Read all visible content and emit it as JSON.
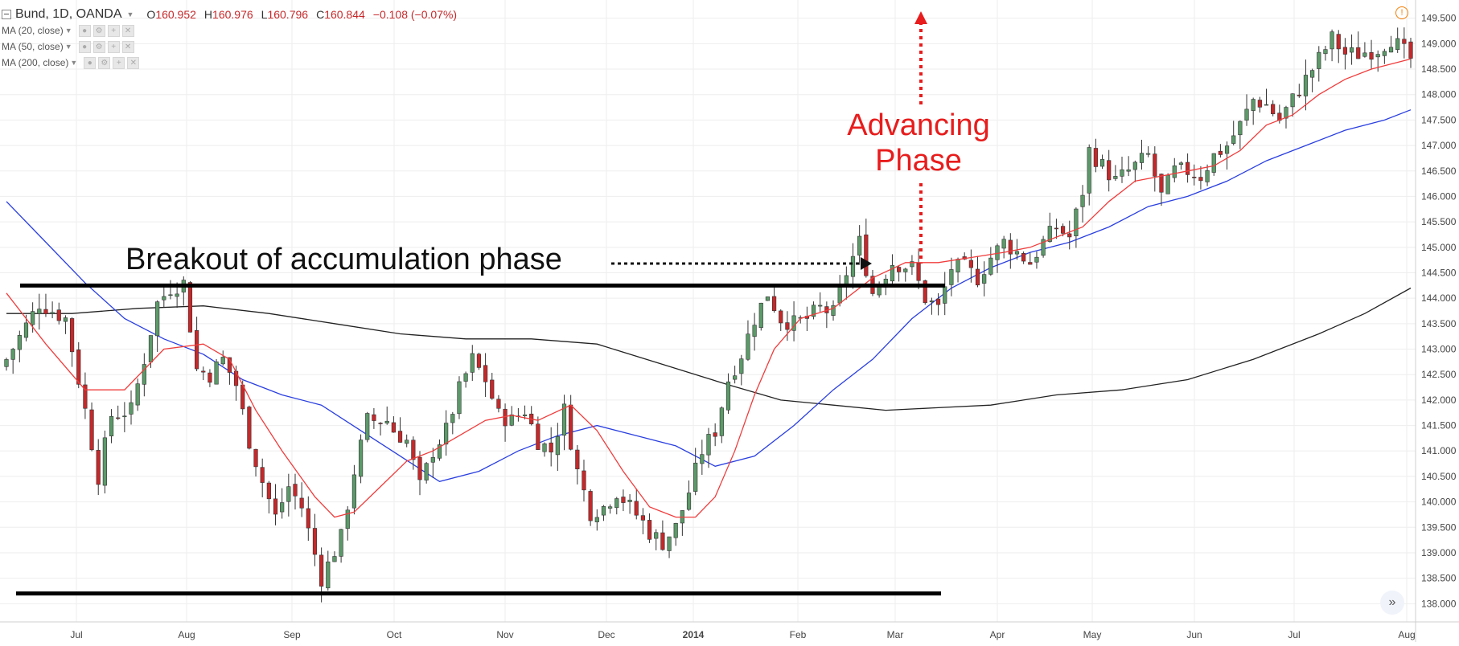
{
  "legend": {
    "symbol": "Bund, 1D, OANDA",
    "o_label": "O",
    "o_value": "160.952",
    "h_label": "H",
    "h_value": "160.976",
    "l_label": "L",
    "l_value": "160.796",
    "c_label": "C",
    "c_value": "160.844",
    "change": "−0.108 (−0.07%)",
    "indicators": [
      "MA (20, close)",
      "MA (50, close)",
      "MA (200, close)"
    ]
  },
  "icons": {
    "collapse": "collapse-icon",
    "warning": "warning-icon",
    "scroll": "scroll-right-icon",
    "settings": "gear-icon",
    "add": "plus-icon",
    "remove": "close-icon"
  },
  "annotations": {
    "breakout": "Breakout of accumulation phase",
    "advancing_line1": "Advancing",
    "advancing_line2": "Phase"
  },
  "colors": {
    "up_candle": "#5b9a68",
    "down_candle": "#c6282a",
    "ma20": "#f03c3c",
    "ma50": "#2a3fe0",
    "ma200": "#222222",
    "annotation_red": "#e81c1c",
    "grid": "#eeeeee"
  },
  "chart_data": {
    "type": "candlestick",
    "title": "Bund, 1D, OANDA",
    "y_range": [
      137.8,
      149.7
    ],
    "y_ticks": [
      "149.500",
      "149.000",
      "148.500",
      "148.000",
      "147.500",
      "147.000",
      "146.500",
      "146.000",
      "145.500",
      "145.000",
      "144.500",
      "144.000",
      "143.500",
      "143.000",
      "142.500",
      "142.000",
      "141.500",
      "141.000",
      "140.500",
      "140.000",
      "139.500",
      "139.000",
      "138.500",
      "138.000"
    ],
    "x_labels": [
      "Jul",
      "Aug",
      "Sep",
      "Oct",
      "Nov",
      "Dec",
      "2014",
      "Feb",
      "Mar",
      "Apr",
      "May",
      "Jun",
      "Jul",
      "Aug"
    ],
    "resistance_level": 144.25,
    "support_level": 138.2,
    "close_path": [
      [
        0,
        142.8
      ],
      [
        5,
        143.9
      ],
      [
        9,
        143.6
      ],
      [
        12,
        141.8
      ],
      [
        14,
        140.5
      ],
      [
        16,
        141.7
      ],
      [
        19,
        141.8
      ],
      [
        21,
        142.8
      ],
      [
        23,
        143.9
      ],
      [
        25,
        144.2
      ],
      [
        27,
        144.3
      ],
      [
        29,
        142.6
      ],
      [
        31,
        142.5
      ],
      [
        33,
        142.8
      ],
      [
        35,
        142.3
      ],
      [
        37,
        141.2
      ],
      [
        39,
        140.4
      ],
      [
        41,
        139.7
      ],
      [
        43,
        140.3
      ],
      [
        45,
        139.9
      ],
      [
        48,
        138.5
      ],
      [
        51,
        139.3
      ],
      [
        53,
        140.6
      ],
      [
        55,
        141.6
      ],
      [
        58,
        141.6
      ],
      [
        59,
        141.4
      ],
      [
        61,
        141.2
      ],
      [
        63,
        140.3
      ],
      [
        65,
        141.0
      ],
      [
        67,
        141.4
      ],
      [
        69,
        142.2
      ],
      [
        71,
        142.8
      ],
      [
        73,
        142.4
      ],
      [
        75,
        141.7
      ],
      [
        77,
        141.6
      ],
      [
        79,
        141.8
      ],
      [
        81,
        141.2
      ],
      [
        83,
        141.0
      ],
      [
        85,
        141.8
      ],
      [
        87,
        140.6
      ],
      [
        89,
        139.8
      ],
      [
        91,
        139.9
      ],
      [
        93,
        140.2
      ],
      [
        95,
        139.9
      ],
      [
        97,
        139.6
      ],
      [
        98,
        139.4
      ],
      [
        100,
        139.2
      ],
      [
        102,
        139.5
      ],
      [
        104,
        140.2
      ],
      [
        106,
        141.0
      ],
      [
        108,
        141.4
      ],
      [
        110,
        142.4
      ],
      [
        112,
        142.9
      ],
      [
        114,
        143.6
      ],
      [
        116,
        144.1
      ],
      [
        118,
        143.6
      ],
      [
        120,
        143.5
      ],
      [
        122,
        143.6
      ],
      [
        124,
        143.8
      ],
      [
        126,
        143.7
      ],
      [
        128,
        144.5
      ],
      [
        130,
        145.1
      ],
      [
        132,
        144.1
      ],
      [
        135,
        144.7
      ],
      [
        138,
        144.6
      ],
      [
        140,
        144.0
      ],
      [
        142,
        143.8
      ],
      [
        144,
        144.6
      ],
      [
        146,
        144.6
      ],
      [
        148,
        144.4
      ],
      [
        150,
        144.8
      ],
      [
        152,
        145.1
      ],
      [
        154,
        144.9
      ],
      [
        156,
        144.7
      ],
      [
        158,
        145.1
      ],
      [
        160,
        145.4
      ],
      [
        162,
        145.2
      ],
      [
        164,
        146.1
      ],
      [
        165,
        146.9
      ],
      [
        167,
        146.6
      ],
      [
        169,
        146.3
      ],
      [
        171,
        146.5
      ],
      [
        174,
        146.8
      ],
      [
        176,
        146.0
      ],
      [
        178,
        146.5
      ],
      [
        180,
        146.5
      ],
      [
        182,
        146.4
      ],
      [
        184,
        146.8
      ],
      [
        186,
        147.0
      ],
      [
        188,
        147.4
      ],
      [
        190,
        147.9
      ],
      [
        192,
        147.8
      ],
      [
        194,
        147.5
      ],
      [
        196,
        147.9
      ],
      [
        198,
        148.3
      ],
      [
        200,
        148.7
      ],
      [
        202,
        149.1
      ],
      [
        204,
        148.8
      ],
      [
        206,
        148.8
      ],
      [
        209,
        148.9
      ],
      [
        211,
        149.1
      ],
      [
        214,
        148.7
      ]
    ],
    "ma20_path": [
      [
        0,
        144.1
      ],
      [
        6,
        143.1
      ],
      [
        12,
        142.2
      ],
      [
        18,
        142.2
      ],
      [
        24,
        143.0
      ],
      [
        30,
        143.1
      ],
      [
        34,
        142.8
      ],
      [
        38,
        141.8
      ],
      [
        42,
        141.0
      ],
      [
        47,
        140.1
      ],
      [
        50,
        139.7
      ],
      [
        53,
        139.8
      ],
      [
        57,
        140.3
      ],
      [
        61,
        140.8
      ],
      [
        65,
        141.0
      ],
      [
        69,
        141.3
      ],
      [
        73,
        141.6
      ],
      [
        77,
        141.7
      ],
      [
        81,
        141.6
      ],
      [
        86,
        141.9
      ],
      [
        90,
        141.4
      ],
      [
        94,
        140.6
      ],
      [
        98,
        139.9
      ],
      [
        102,
        139.7
      ],
      [
        105,
        139.7
      ],
      [
        108,
        140.1
      ],
      [
        111,
        141.0
      ],
      [
        114,
        142.1
      ],
      [
        117,
        143.0
      ],
      [
        121,
        143.6
      ],
      [
        126,
        143.8
      ],
      [
        132,
        144.4
      ],
      [
        137,
        144.7
      ],
      [
        142,
        144.7
      ],
      [
        147,
        144.8
      ],
      [
        152,
        144.9
      ],
      [
        156,
        145.0
      ],
      [
        160,
        145.2
      ],
      [
        164,
        145.4
      ],
      [
        168,
        145.9
      ],
      [
        172,
        146.3
      ],
      [
        176,
        146.4
      ],
      [
        180,
        146.5
      ],
      [
        184,
        146.6
      ],
      [
        188,
        146.9
      ],
      [
        192,
        147.4
      ],
      [
        196,
        147.6
      ],
      [
        200,
        148.0
      ],
      [
        204,
        148.3
      ],
      [
        208,
        148.5
      ],
      [
        214,
        148.7
      ]
    ],
    "ma50_path": [
      [
        0,
        145.9
      ],
      [
        6,
        145.1
      ],
      [
        12,
        144.3
      ],
      [
        18,
        143.6
      ],
      [
        24,
        143.2
      ],
      [
        30,
        142.9
      ],
      [
        36,
        142.4
      ],
      [
        42,
        142.1
      ],
      [
        48,
        141.9
      ],
      [
        54,
        141.4
      ],
      [
        60,
        140.9
      ],
      [
        66,
        140.4
      ],
      [
        72,
        140.6
      ],
      [
        78,
        141.0
      ],
      [
        84,
        141.3
      ],
      [
        90,
        141.5
      ],
      [
        96,
        141.3
      ],
      [
        102,
        141.1
      ],
      [
        108,
        140.7
      ],
      [
        114,
        140.9
      ],
      [
        120,
        141.5
      ],
      [
        126,
        142.2
      ],
      [
        132,
        142.8
      ],
      [
        138,
        143.6
      ],
      [
        144,
        144.2
      ],
      [
        150,
        144.6
      ],
      [
        156,
        144.9
      ],
      [
        162,
        145.1
      ],
      [
        168,
        145.4
      ],
      [
        174,
        145.8
      ],
      [
        180,
        146.0
      ],
      [
        186,
        146.3
      ],
      [
        192,
        146.7
      ],
      [
        198,
        147.0
      ],
      [
        204,
        147.3
      ],
      [
        210,
        147.5
      ],
      [
        214,
        147.7
      ]
    ],
    "ma200_path": [
      [
        0,
        143.7
      ],
      [
        10,
        143.7
      ],
      [
        20,
        143.8
      ],
      [
        30,
        143.85
      ],
      [
        40,
        143.7
      ],
      [
        50,
        143.5
      ],
      [
        60,
        143.3
      ],
      [
        70,
        143.2
      ],
      [
        80,
        143.2
      ],
      [
        90,
        143.1
      ],
      [
        100,
        142.7
      ],
      [
        110,
        142.3
      ],
      [
        118,
        142.0
      ],
      [
        126,
        141.9
      ],
      [
        134,
        141.8
      ],
      [
        142,
        141.85
      ],
      [
        150,
        141.9
      ],
      [
        160,
        142.1
      ],
      [
        170,
        142.2
      ],
      [
        180,
        142.4
      ],
      [
        190,
        142.8
      ],
      [
        200,
        143.3
      ],
      [
        207,
        143.7
      ],
      [
        214,
        144.2
      ]
    ]
  }
}
